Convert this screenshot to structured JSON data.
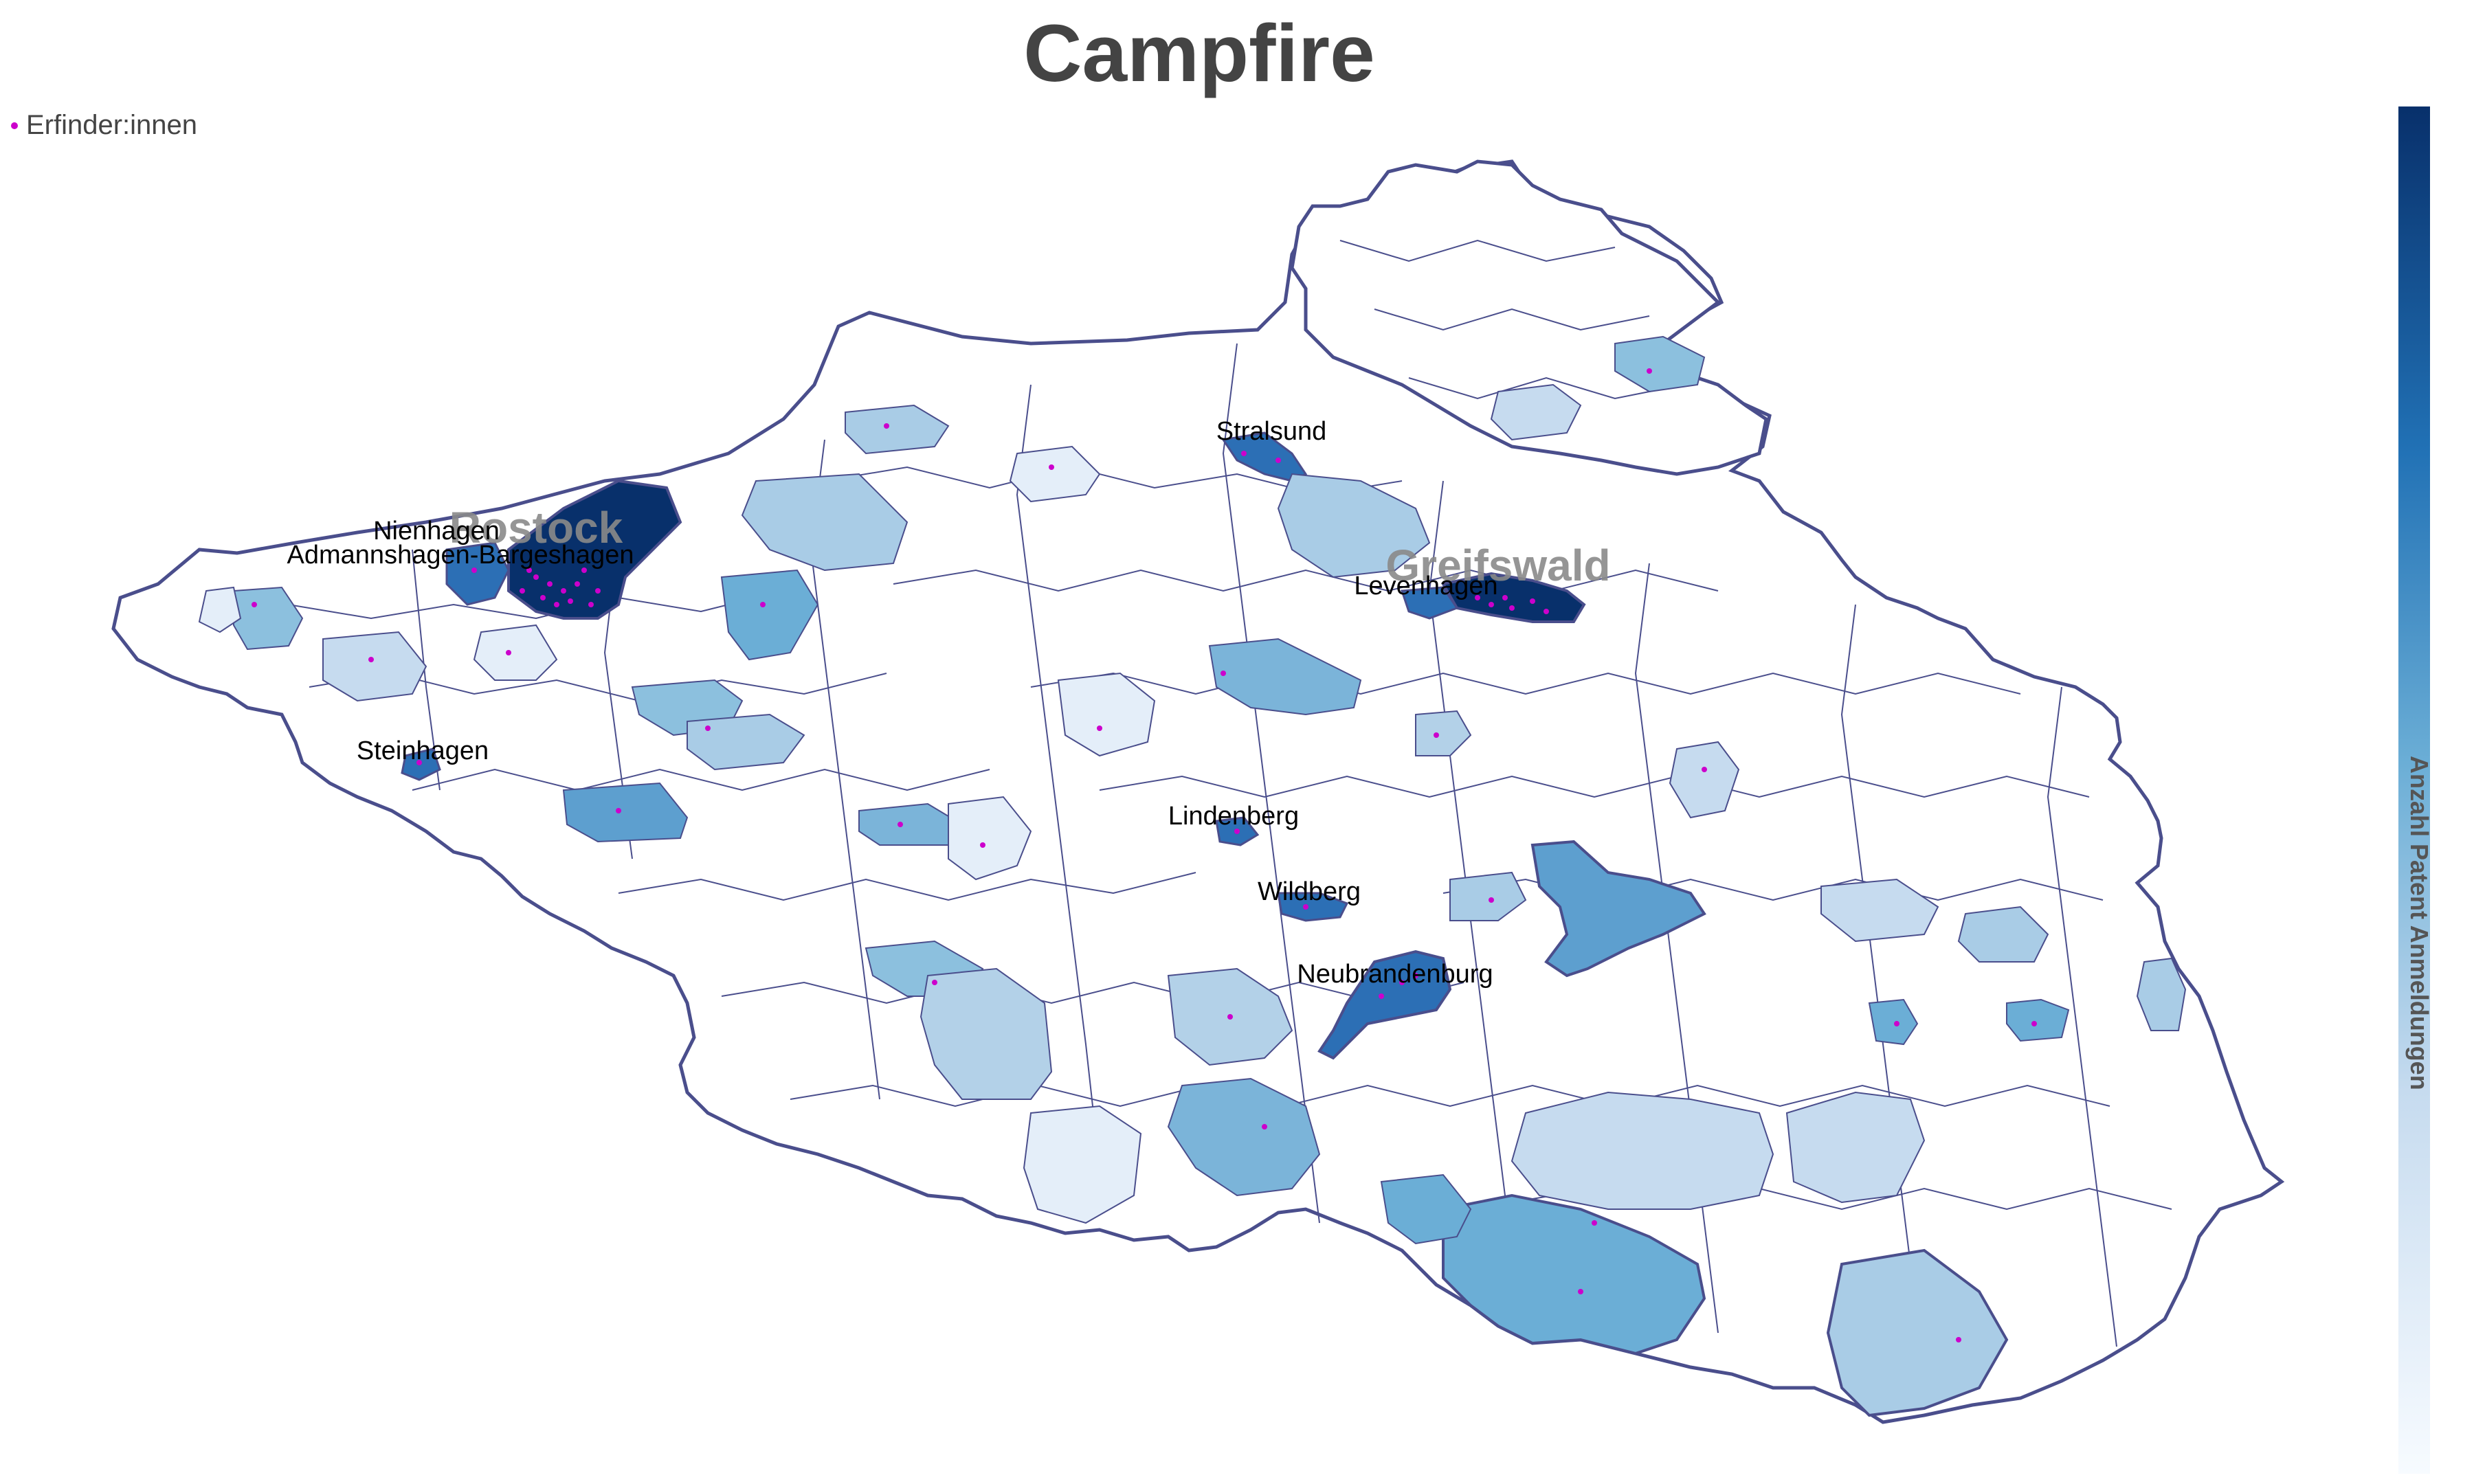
{
  "title": "Campfire",
  "legend": {
    "label": "Erfinder:innen",
    "marker_color": "#cc00cc"
  },
  "colorbar": {
    "label": "Anzahl Patent Anmeldungen",
    "colors": [
      "#08306b",
      "#2171b5",
      "#6baed6",
      "#c6dbef",
      "#f7fbff"
    ]
  },
  "labels": {
    "stralsund": "Stralsund",
    "nienhagen": "Nienhagen",
    "rostock": "Rostock",
    "admannshagen": "Admannshagen-Bargeshagen",
    "greifswald": "Greifswald",
    "levenhagen": "Levenhagen",
    "steinhagen": "Steinhagen",
    "lindenberg": "Lindenberg",
    "wildberg": "Wildberg",
    "neubrandenburg": "Neubrandenburg"
  },
  "region_colors": {
    "outline": "#4a4e8c",
    "darkest": "#08306b",
    "dark": "#2c6fb5",
    "medium": "#6baed6",
    "light": "#a9cce6",
    "lighter": "#c6dbef",
    "lightest": "#e4eef9",
    "empty": "#ffffff"
  }
}
